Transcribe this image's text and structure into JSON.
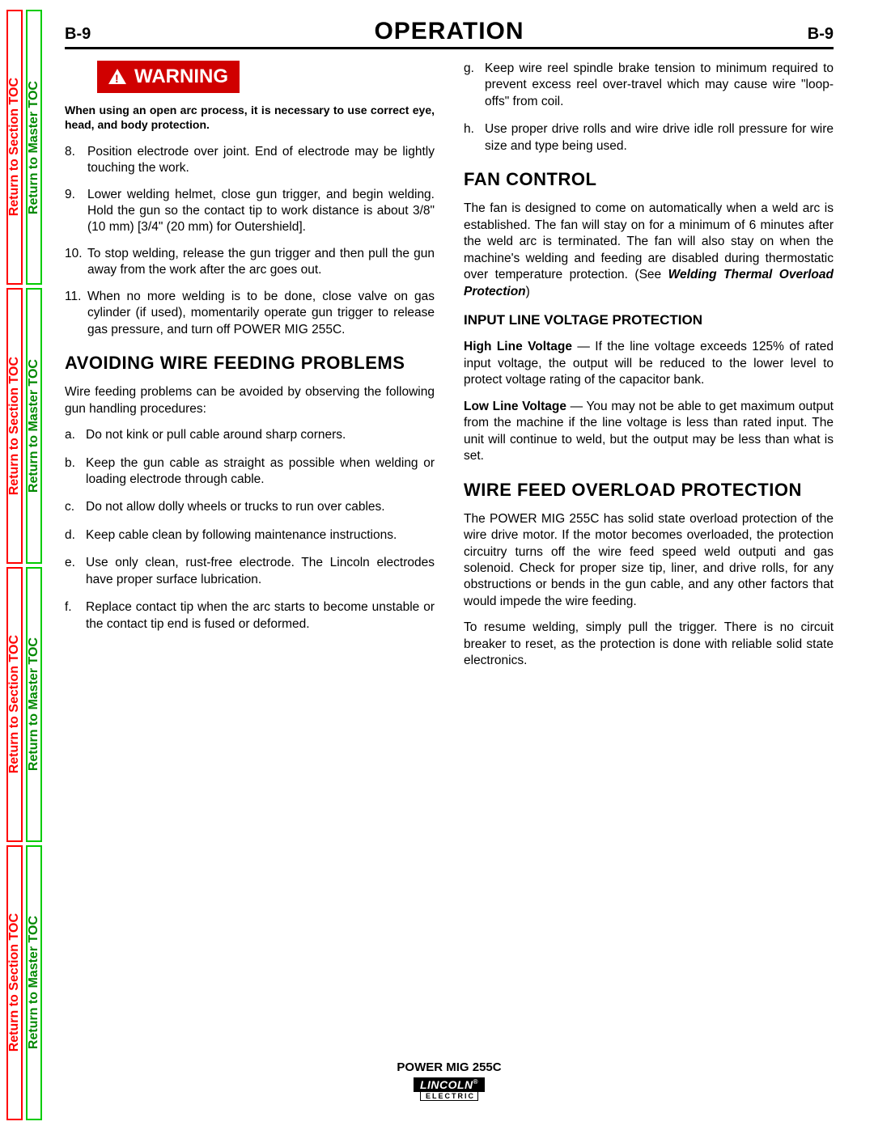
{
  "side_tabs": {
    "section_label": "Return to Section TOC",
    "master_label": "Return to Master TOC",
    "red_color": "#ff0000",
    "green_color": "#00cc00"
  },
  "header": {
    "page_left": "B-9",
    "chapter": "OPERATION",
    "page_right": "B-9"
  },
  "warning": {
    "label": "WARNING",
    "note": "When using an open arc process, it is necessary to use correct eye, head, and body protection."
  },
  "left_column": {
    "numbered": [
      {
        "n": "8.",
        "t": "Position electrode over joint. End of electrode may be lightly touching the work."
      },
      {
        "n": "9.",
        "t": "Lower welding helmet, close gun trigger, and begin welding. Hold the gun so the contact tip to work distance is about 3/8\" (10 mm) [3/4\" (20 mm) for Outershield]."
      },
      {
        "n": "10.",
        "t": "To stop welding, release the gun trigger and then pull the gun away from the work after the arc goes out."
      },
      {
        "n": "11.",
        "t": "When no more welding is to be done, close valve on gas cylinder (if used), momentarily operate gun trigger to release gas pressure, and turn off POWER MIG 255C."
      }
    ],
    "heading_avoiding": "AVOIDING WIRE FEEDING PROBLEMS",
    "avoiding_intro": "Wire feeding problems can be avoided by observing the following gun handling procedures:",
    "lettered": [
      {
        "l": "a.",
        "t": "Do not kink or pull cable around sharp corners."
      },
      {
        "l": "b.",
        "t": " Keep the gun cable as straight as possible when welding or loading electrode through cable."
      },
      {
        "l": "c.",
        "t": "Do not allow dolly wheels or trucks to run over cables."
      },
      {
        "l": "d.",
        "t": "Keep cable clean by following maintenance instructions."
      },
      {
        "l": "e.",
        "t": "Use only clean, rust-free electrode. The Lincoln electrodes have proper surface lubrication."
      },
      {
        "l": "f.",
        "t": "Replace contact tip when the arc starts to become unstable or the contact tip end is fused or deformed."
      }
    ]
  },
  "right_column": {
    "lettered_cont": [
      {
        "l": "g.",
        "t": "Keep wire reel spindle brake tension to minimum required to prevent excess reel over-travel which may cause wire \"loop-offs\" from coil."
      },
      {
        "l": "h.",
        "t": "Use proper drive rolls and wire drive idle roll pressure for wire size and type being used."
      }
    ],
    "heading_fan": "FAN CONTROL",
    "fan_body_pre": "The fan is designed to come on automatically when a weld arc is established. The fan will stay on for a minimum of 6 minutes after the weld arc is terminated. The fan will also stay on when the machine's welding and feeding are disabled during thermostatic over temperature protection. (See ",
    "fan_body_bold": "Welding Thermal Overload Protection",
    "fan_body_post": ")",
    "heading_input": "INPUT LINE VOLTAGE PROTECTION",
    "high_line_label": "High Line Voltage",
    "high_line_text": " — If the line voltage exceeds 125% of rated input voltage, the output will be reduced to the lower level to protect voltage rating of the capacitor bank.",
    "low_line_label": "Low Line Voltage",
    "low_line_text": " — You may not be able to get maximum output from the machine if the line voltage is less than rated input. The unit will continue to weld, but the output may be less than what is set.",
    "heading_wirefeed": "WIRE FEED OVERLOAD PROTECTION",
    "wirefeed_p1": "The POWER MIG 255C has solid state overload protection of the wire drive motor. If the motor becomes overloaded, the protection circuitry turns off the wire feed speed weld outputi and gas solenoid. Check for proper size tip, liner, and drive rolls, for any obstructions or bends in the gun cable, and any other factors that would impede the wire feeding.",
    "wirefeed_p2": "To resume welding, simply pull the trigger. There is no circuit breaker to reset, as the protection is done with reliable solid state electronics."
  },
  "footer": {
    "product": "POWER MIG 255C",
    "brand_top": "LINCOLN",
    "brand_reg": "®",
    "brand_bottom": "ELECTRIC"
  }
}
